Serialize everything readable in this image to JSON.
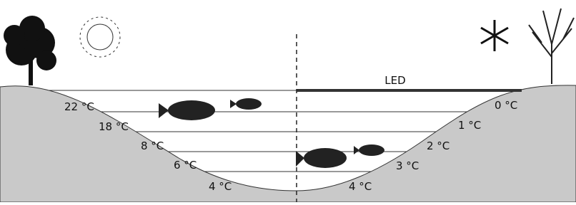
{
  "led_label": "LED",
  "left_temperatures": [
    "22 °C",
    "18 °C",
    "8 °C",
    "6 °C",
    "4 °C"
  ],
  "right_temperatures": [
    "0 °C",
    "1 °C",
    "2 °C",
    "3 °C",
    "4 °C"
  ]
}
